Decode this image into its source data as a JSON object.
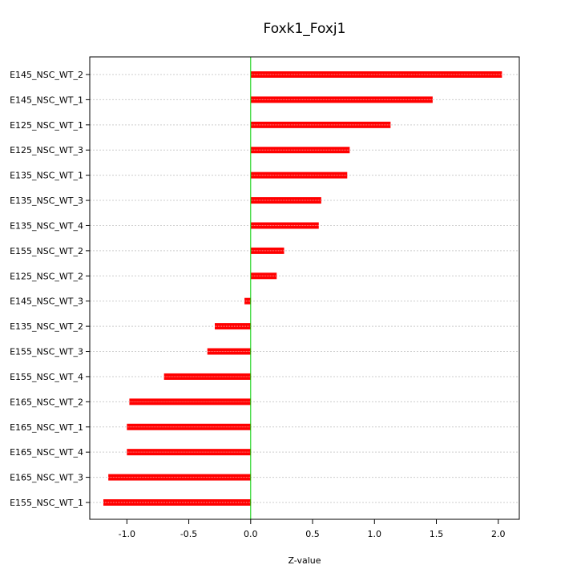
{
  "chart_data": {
    "type": "bar",
    "orientation": "horizontal",
    "title": "Foxk1_Foxj1",
    "xlabel": "Z-value",
    "ylabel": "",
    "xlim": [
      -1.3,
      2.17
    ],
    "xticks": [
      "-1.0",
      "-0.5",
      "0.0",
      "0.5",
      "1.0",
      "1.5",
      "2.0"
    ],
    "xtick_values": [
      -1.0,
      -0.5,
      0.0,
      0.5,
      1.0,
      1.5,
      2.0
    ],
    "grid": true,
    "reference_line": 0.0,
    "colors": {
      "bar": "#ff0000",
      "bar_highlight": "#ff9a9a",
      "zero_line": "#00cc00",
      "grid": "#cccccc"
    },
    "categories": [
      "E145_NSC_WT_2",
      "E145_NSC_WT_1",
      "E125_NSC_WT_1",
      "E125_NSC_WT_3",
      "E135_NSC_WT_1",
      "E135_NSC_WT_3",
      "E135_NSC_WT_4",
      "E155_NSC_WT_2",
      "E125_NSC_WT_2",
      "E145_NSC_WT_3",
      "E135_NSC_WT_2",
      "E155_NSC_WT_3",
      "E155_NSC_WT_4",
      "E165_NSC_WT_2",
      "E165_NSC_WT_1",
      "E165_NSC_WT_4",
      "E165_NSC_WT_3",
      "E155_NSC_WT_1"
    ],
    "values": [
      2.03,
      1.47,
      1.13,
      0.8,
      0.78,
      0.57,
      0.55,
      0.27,
      0.21,
      -0.05,
      -0.29,
      -0.35,
      -0.7,
      -0.98,
      -1.0,
      -1.0,
      -1.15,
      -1.19
    ]
  }
}
